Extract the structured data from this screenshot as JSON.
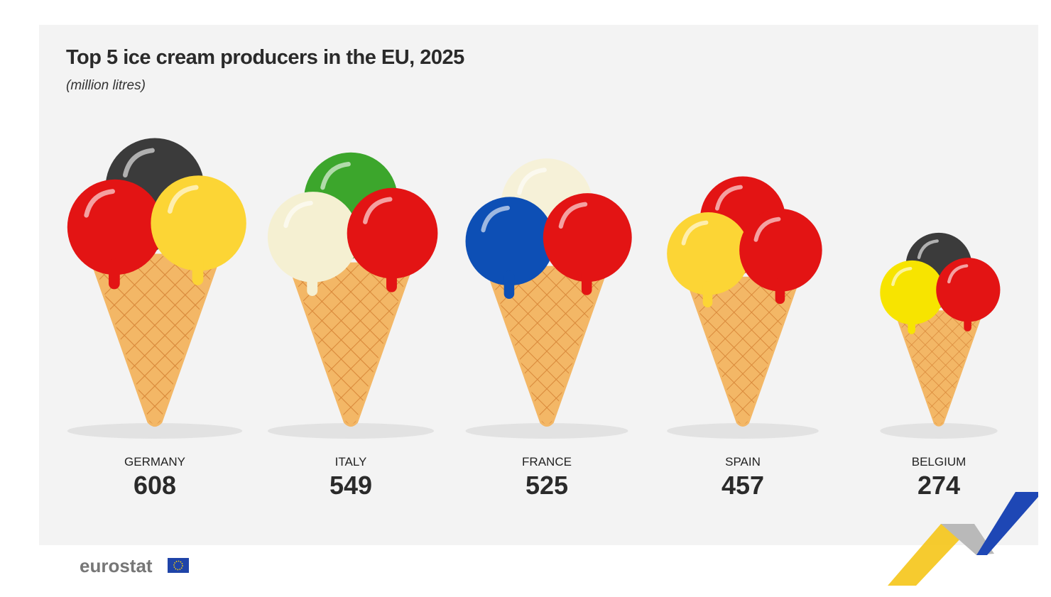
{
  "chart_data": {
    "type": "pictograph",
    "title": "Top 5 ice cream producers in the EU, 2025",
    "subtitle": "(million litres)",
    "categories": [
      "GERMANY",
      "ITALY",
      "FRANCE",
      "SPAIN",
      "BELGIUM"
    ],
    "values": [
      608,
      549,
      525,
      457,
      274
    ],
    "scoop_colors": [
      [
        "#3b3b3b",
        "#e31414",
        "#fcd535"
      ],
      [
        "#3ca62c",
        "#f5f0d2",
        "#e31414"
      ],
      [
        "#f6f1d8",
        "#0d4fb5",
        "#e31414"
      ],
      [
        "#e31414",
        "#fcd535",
        "#e31414"
      ],
      [
        "#3b3b3b",
        "#f7e400",
        "#e31414"
      ]
    ],
    "cone_color": "#f3b766",
    "source": "eurostat"
  }
}
